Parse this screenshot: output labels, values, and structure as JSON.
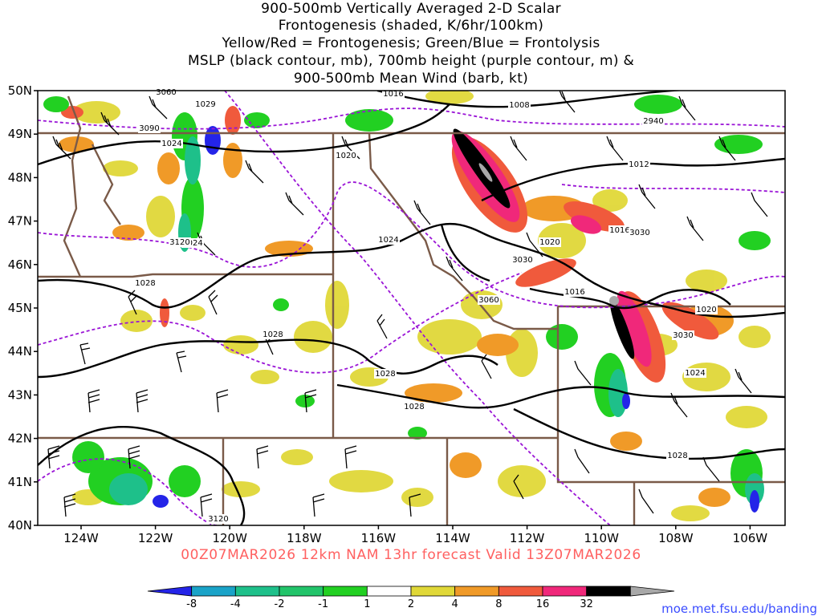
{
  "title": {
    "line1": "900-500mb Vertically Averaged 2-D Scalar",
    "line2": "Frontogenesis (shaded, K/6hr/100km)",
    "line3": "Yellow/Red = Frontogenesis;  Green/Blue = Frontolysis",
    "line4": "MSLP (black contour, mb), 700mb height (purple contour, m) &",
    "line5": "900-500mb Mean Wind (barb, kt)"
  },
  "axes": {
    "lat_labels": [
      "50N",
      "49N",
      "48N",
      "47N",
      "46N",
      "45N",
      "44N",
      "43N",
      "42N",
      "41N",
      "40N"
    ],
    "lon_labels": [
      "124W",
      "122W",
      "120W",
      "118W",
      "116W",
      "114W",
      "112W",
      "110W",
      "108W",
      "106W"
    ]
  },
  "contour_labels": {
    "mslp": [
      "1029",
      "1024",
      "1020",
      "1024",
      "1016",
      "1008",
      "1012",
      "1016",
      "1020",
      "1024",
      "1020",
      "1028",
      "1028",
      "1028",
      "1024",
      "1028",
      "1028",
      "1016"
    ],
    "height": [
      "3060",
      "3090",
      "3120",
      "2940",
      "3030",
      "3060",
      "3030",
      "3030",
      "3120"
    ]
  },
  "colorbar": {
    "ticks": [
      "-8",
      "-4",
      "-2",
      "-1",
      "1",
      "2",
      "4",
      "8",
      "16",
      "32"
    ],
    "colors": [
      "#2424e8",
      "#1aa3c8",
      "#1ec08a",
      "#22c46a",
      "#22d022",
      "#ffffff",
      "#e0d838",
      "#f09a28",
      "#f05a3c",
      "#f0287a",
      "#000000",
      "#a8a8a8"
    ]
  },
  "valid_time": "00Z07MAR2026 12km NAM 13hr forecast Valid 13Z07MAR2026",
  "credit": "moe.met.fsu.edu/banding",
  "colors": {
    "mslp_contour": "#000000",
    "height_contour": "#9a14d6",
    "state_borders": "#7a5a48",
    "valid_text": "#ff6060"
  }
}
